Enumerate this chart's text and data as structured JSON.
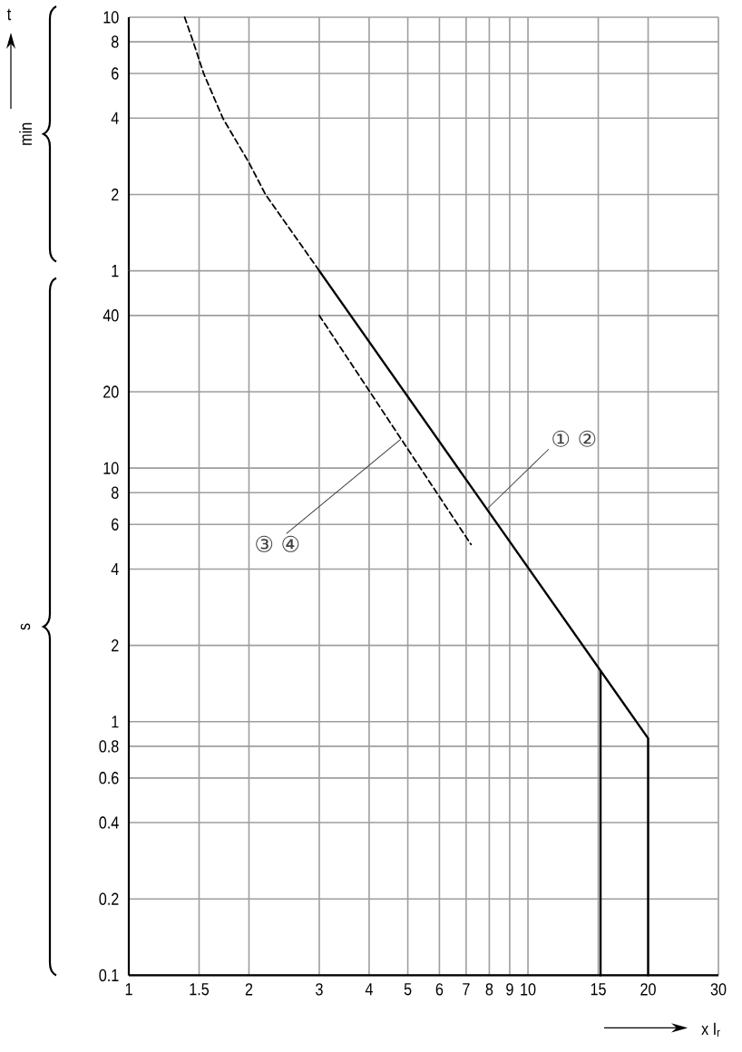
{
  "chart_data": [
    {
      "type": "line",
      "log": "xy",
      "grid": true,
      "tick_labels": "y",
      "ylabel": "min",
      "xlim": [
        1,
        30
      ],
      "xticks": [
        1,
        1.5,
        2,
        3,
        4,
        5,
        6,
        7,
        8,
        9,
        10,
        15,
        20,
        30
      ],
      "ylim": [
        1,
        10
      ],
      "yticks": [
        1,
        2,
        4,
        6,
        8,
        10
      ],
      "series": [
        {
          "color": "#000000",
          "line_style": "dashed",
          "x": [
            1.38,
            1.45,
            1.54,
            1.72,
            2,
            2.2,
            3
          ],
          "values": [
            10,
            8,
            6,
            4,
            2.67,
            2,
            1
          ]
        }
      ],
      "annotations": [
        "t"
      ]
    },
    {
      "type": "line",
      "log": "xy",
      "grid": true,
      "xlabel": "x I$_{r}$",
      "ylabel": "s",
      "xlim": [
        1,
        30
      ],
      "xticks": [
        1,
        1.5,
        2,
        3,
        4,
        5,
        6,
        7,
        8,
        9,
        10,
        15,
        20,
        30
      ],
      "ylim": [
        0.1,
        60
      ],
      "yticks": [
        0.1,
        0.2,
        0.4,
        0.6,
        0.8,
        1,
        2,
        4,
        6,
        8,
        10,
        20,
        40
      ],
      "series": [
        {
          "color": "#000000",
          "line_style": "solid",
          "x": [
            3,
            20,
            20
          ],
          "values": [
            60,
            0.86,
            0.1
          ]
        },
        {
          "color": "#000000",
          "line_style": "solid",
          "x": [
            15.2,
            15.2
          ],
          "values": [
            1.58,
            0.1
          ]
        },
        {
          "color": "#000000",
          "line_style": "dashed",
          "x": [
            3,
            7.2
          ],
          "values": [
            40,
            5
          ]
        }
      ],
      "annotations": [
        {
          "text": "① ②",
          "x": 7.9,
          "y": 6.9
        },
        {
          "text": "③ ④",
          "x": 4.8,
          "y": 13
        }
      ]
    }
  ]
}
